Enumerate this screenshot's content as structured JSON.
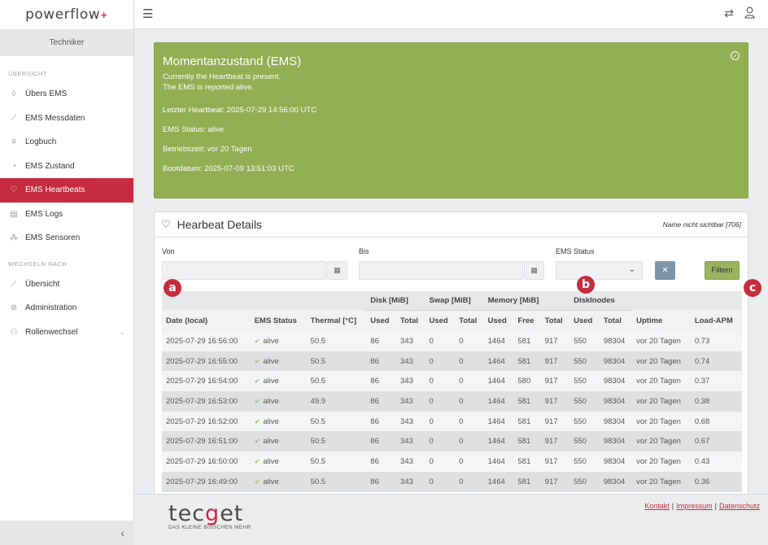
{
  "app": {
    "logo_text": "powerflow",
    "logo_plus": "+"
  },
  "sidebar": {
    "role": "Techniker",
    "section1": "ÜBERSICHT",
    "items": [
      {
        "label": "Übers EMS",
        "icon": "drop-icon"
      },
      {
        "label": "EMS Messdaten",
        "icon": "chart-icon"
      },
      {
        "label": "Logbuch",
        "icon": "list-icon"
      },
      {
        "label": "EMS Zustand",
        "icon": "gauge-icon"
      },
      {
        "label": "EMS Heartbeats",
        "icon": "heart-icon"
      },
      {
        "label": "EMS Logs",
        "icon": "document-icon"
      },
      {
        "label": "EMS Sensoren",
        "icon": "sensor-icon"
      }
    ],
    "section2": "WECHSELN NACH",
    "items2": [
      {
        "label": "Übersicht",
        "icon": "graph-icon"
      },
      {
        "label": "Administration",
        "icon": "admin-icon"
      },
      {
        "label": "Rollenwechsel",
        "icon": "users-icon"
      }
    ],
    "active_color": "#c62b3e"
  },
  "status": {
    "title": "Momentanzustand (EMS)",
    "line1": "Currently the Heartbeat is present.",
    "line2": "The EMS is reported alive.",
    "last_heartbeat": "Letzter Heartbeat: 2025-07-29 14:56:00 UTC",
    "ems_status": "EMS Status: alive",
    "uptime": "Betriebszeit: vor 20 Tagen",
    "boot": "Bootdatum: 2025-07-09 13:51:03 UTC",
    "color": "#92ae52"
  },
  "details": {
    "title": "Hearbeat Details",
    "right": "Name nicht sichtbar [706]",
    "von_label": "Von",
    "bis_label": "Bis",
    "ems_status_label": "EMS Status",
    "filter_label": "Filtern",
    "clear_label": "✕"
  },
  "table": {
    "groups": [
      "Disk [MiB]",
      "Swap [MiB]",
      "Memory [MiB]",
      "DiskInodes"
    ],
    "columns": [
      "Date (local)",
      "EMS Status",
      "Thermal [°C]",
      "Used",
      "Total",
      "Used",
      "Total",
      "Used",
      "Free",
      "Total",
      "Used",
      "Total",
      "Uptime",
      "Load-APM"
    ],
    "rows": [
      [
        "2025-07-29 16:56:00",
        "alive",
        "50.5",
        "86",
        "343",
        "0",
        "0",
        "1464",
        "581",
        "917",
        "550",
        "98304",
        "vor 20 Tagen",
        "0.73"
      ],
      [
        "2025-07-29 16:55:00",
        "alive",
        "50.5",
        "86",
        "343",
        "0",
        "0",
        "1464",
        "581",
        "917",
        "550",
        "98304",
        "vor 20 Tagen",
        "0.74"
      ],
      [
        "2025-07-29 16:54:00",
        "alive",
        "50.5",
        "86",
        "343",
        "0",
        "0",
        "1464",
        "580",
        "917",
        "550",
        "98304",
        "vor 20 Tagen",
        "0.37"
      ],
      [
        "2025-07-29 16:53:00",
        "alive",
        "49.9",
        "86",
        "343",
        "0",
        "0",
        "1464",
        "581",
        "917",
        "550",
        "98304",
        "vor 20 Tagen",
        "0.38"
      ],
      [
        "2025-07-29 16:52:00",
        "alive",
        "50.5",
        "86",
        "343",
        "0",
        "0",
        "1464",
        "581",
        "917",
        "550",
        "98304",
        "vor 20 Tagen",
        "0.68"
      ],
      [
        "2025-07-29 16:51:00",
        "alive",
        "50.5",
        "86",
        "343",
        "0",
        "0",
        "1464",
        "581",
        "917",
        "550",
        "98304",
        "vor 20 Tagen",
        "0.67"
      ],
      [
        "2025-07-29 16:50:00",
        "alive",
        "50.5",
        "86",
        "343",
        "0",
        "0",
        "1464",
        "581",
        "917",
        "550",
        "98304",
        "vor 20 Tagen",
        "0.43"
      ],
      [
        "2025-07-29 16:49:00",
        "alive",
        "50.5",
        "86",
        "343",
        "0",
        "0",
        "1464",
        "581",
        "917",
        "550",
        "98304",
        "vor 20 Tagen",
        "0.36"
      ]
    ]
  },
  "badges": {
    "a": "a",
    "b": "b",
    "c": "c"
  },
  "footer": {
    "brand_pre": "tec",
    "brand_g": "g",
    "brand_post": "et",
    "tagline": "DAS KLEINE BISSCHEN MEHR",
    "links": [
      "Kontakt",
      "Impressum",
      "Datenschutz"
    ],
    "sep": "|"
  }
}
